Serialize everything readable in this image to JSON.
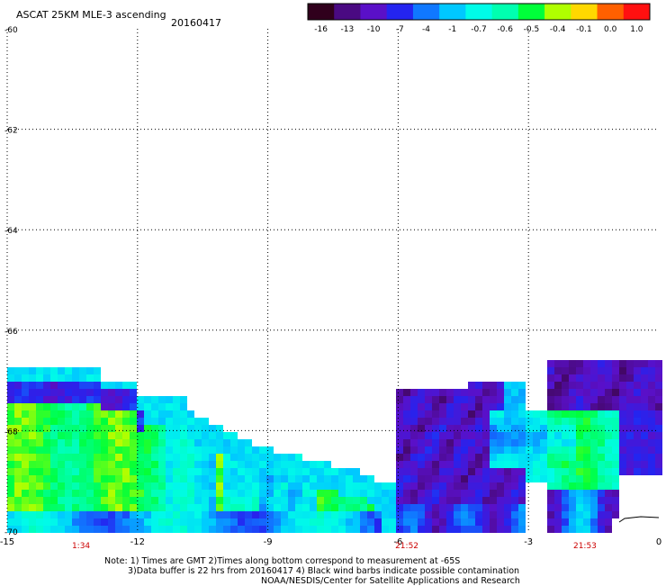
{
  "chart_data": {
    "type": "heatmap",
    "title": "ASCAT 25KM MLE-3 ascending",
    "date": "20160417",
    "xlim": [
      -15,
      0
    ],
    "ylim": [
      -70,
      -60
    ],
    "x_ticks": [
      "-15",
      "-12",
      "-9",
      "-6",
      "-3",
      "0"
    ],
    "y_ticks": [
      "-60",
      "-62",
      "-64",
      "-66",
      "-68",
      "-70"
    ],
    "grid": true,
    "colorbar": {
      "labels": [
        "-16",
        "-13",
        "-10",
        "-7",
        "-4",
        "-1",
        "-0.7",
        "-0.6",
        "-0.5",
        "-0.4",
        "-0.1",
        "0.0",
        "1.0"
      ],
      "colors": [
        "#30001c",
        "#4a0a82",
        "#5a10c8",
        "#2424f0",
        "#1078ff",
        "#00c8ff",
        "#00fce8",
        "#00ffb0",
        "#00ff3a",
        "#b0ff00",
        "#ffd800",
        "#ff6000",
        "#ff1010"
      ]
    },
    "swath_times": [
      {
        "x": -13.3,
        "label": "1:34"
      },
      {
        "x": -5.8,
        "label": "21:52"
      },
      {
        "x": -1.7,
        "label": "21:53"
      }
    ],
    "swaths": [
      {
        "name": "west",
        "region": "x -15 to -6.0, y -70 to -67.4",
        "dominant_values": [
          -0.5,
          -0.7,
          -1,
          -7,
          -13
        ]
      },
      {
        "name": "middle",
        "region": "x -6.2 to -3.2, y -70 to -67.6",
        "dominant_values": [
          -10,
          -13,
          -7,
          -1
        ]
      },
      {
        "name": "east",
        "region": "x -2.5 to 0, y -70 to -66.8",
        "dominant_values": [
          -7,
          -10,
          -13,
          -0.5,
          -1
        ]
      }
    ],
    "time_color": "#cc0000"
  },
  "header": {
    "title": "ASCAT 25KM MLE-3 ascending",
    "date": "20160417"
  },
  "notes": {
    "line1": "Note: 1) Times are GMT 2)Times along bottom correspond to measurement at -65S",
    "line2": "3)Data buffer is 22 hrs from 20160417 4) Black wind barbs indicate possible contamination",
    "line3": "NOAA/NESDIS/Center for Satellite Applications and Research"
  }
}
